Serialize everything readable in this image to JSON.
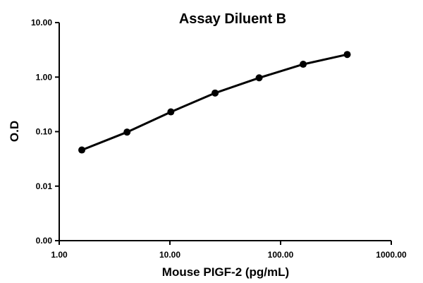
{
  "chart_data": {
    "type": "line",
    "title": "Assay Diluent B",
    "xlabel": "Mouse PIGF-2 (pg/mL)",
    "ylabel": "O.D",
    "x_scale": "log",
    "y_scale": "log",
    "xlim": [
      1,
      1000
    ],
    "ylim": [
      0.001,
      10
    ],
    "x_ticks": [
      1,
      10,
      100,
      1000
    ],
    "y_ticks": [
      0.001,
      0.01,
      0.1,
      1,
      10
    ],
    "x_tick_labels": [
      "1.00",
      "10.00",
      "100.00",
      "1000.00"
    ],
    "y_tick_labels": [
      "0.00",
      "0.01",
      "0.10",
      "1.00",
      "10.00"
    ],
    "grid": false,
    "legend": "none",
    "series": [
      {
        "color": "#000000",
        "marker": "circle",
        "x": [
          1.6,
          4.1,
          10.2,
          25.6,
          64,
          160,
          400
        ],
        "y": [
          0.046,
          0.098,
          0.23,
          0.51,
          0.97,
          1.72,
          2.6
        ]
      }
    ]
  }
}
